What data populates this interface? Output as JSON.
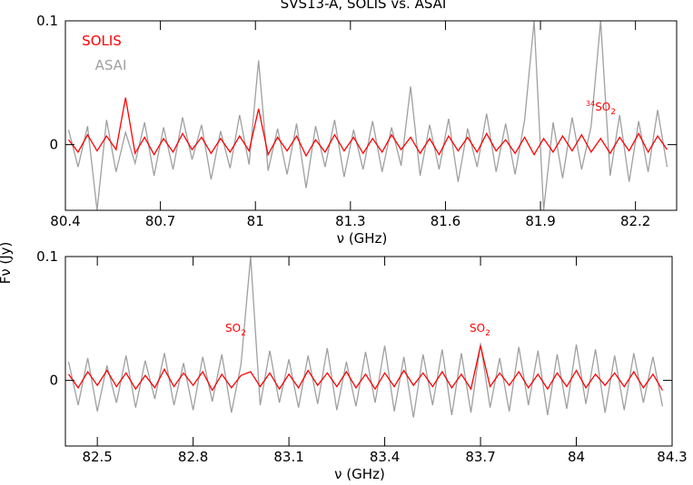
{
  "chart_data": [
    {
      "type": "line",
      "title": "SVS13-A, SOLIS vs. ASAI",
      "y_label": "Fν (Jy)",
      "x_label": "ν (GHz)",
      "x": [
        80.41,
        80.44,
        80.47,
        80.5,
        80.53,
        80.56,
        80.59,
        80.62,
        80.65,
        80.68,
        80.71,
        80.74,
        80.77,
        80.8,
        80.83,
        80.86,
        80.89,
        80.92,
        80.95,
        80.98,
        81.01,
        81.04,
        81.07,
        81.1,
        81.13,
        81.16,
        81.19,
        81.22,
        81.25,
        81.28,
        81.31,
        81.34,
        81.37,
        81.4,
        81.43,
        81.46,
        81.49,
        81.52,
        81.55,
        81.58,
        81.61,
        81.64,
        81.67,
        81.7,
        81.73,
        81.76,
        81.79,
        81.82,
        81.85,
        81.88,
        81.91,
        81.94,
        81.97,
        82.0,
        82.03,
        82.06,
        82.09,
        82.12,
        82.15,
        82.18,
        82.21,
        82.24,
        82.27,
        82.3
      ],
      "series": [
        {
          "name": "ASAI",
          "color": "#a0a0a0",
          "values": [
            0.012,
            -0.018,
            0.015,
            -0.053,
            0.02,
            -0.022,
            0.01,
            -0.015,
            0.018,
            -0.025,
            0.014,
            -0.02,
            0.022,
            -0.012,
            0.016,
            -0.028,
            0.011,
            -0.019,
            0.024,
            -0.016,
            0.068,
            -0.021,
            0.013,
            -0.024,
            0.017,
            -0.035,
            0.015,
            -0.018,
            0.02,
            -0.026,
            0.012,
            -0.02,
            0.019,
            -0.022,
            0.014,
            -0.017,
            0.047,
            -0.025,
            0.016,
            -0.02,
            0.021,
            -0.03,
            0.013,
            -0.018,
            0.025,
            -0.022,
            0.017,
            -0.024,
            0.02,
            0.1,
            -0.053,
            0.018,
            -0.027,
            0.022,
            -0.02,
            0.015,
            0.1,
            -0.025,
            0.024,
            -0.03,
            0.019,
            -0.022,
            0.028,
            -0.018
          ]
        },
        {
          "name": "SOLIS",
          "color": "#ff0000",
          "values": [
            0.004,
            -0.006,
            0.008,
            -0.005,
            0.007,
            -0.004,
            0.038,
            -0.007,
            0.006,
            -0.008,
            0.005,
            -0.006,
            0.009,
            -0.004,
            0.006,
            -0.007,
            0.005,
            -0.006,
            0.007,
            -0.005,
            0.029,
            -0.008,
            0.006,
            -0.005,
            0.007,
            -0.009,
            0.004,
            -0.006,
            0.008,
            -0.005,
            0.006,
            -0.007,
            0.005,
            -0.006,
            0.008,
            -0.004,
            0.006,
            -0.007,
            0.005,
            -0.008,
            0.007,
            -0.005,
            0.006,
            -0.006,
            0.009,
            -0.005,
            0.004,
            -0.007,
            0.006,
            -0.008,
            0.005,
            -0.006,
            0.007,
            -0.005,
            0.008,
            -0.006,
            0.005,
            -0.007,
            0.006,
            -0.005,
            0.009,
            -0.006,
            0.007,
            -0.004
          ]
        }
      ],
      "xlim": [
        80.4,
        82.33
      ],
      "ylim": [
        -0.053,
        0.1
      ],
      "xticks": [
        80.4,
        80.7,
        81,
        81.3,
        81.6,
        81.9,
        82.2
      ],
      "yticks": [
        0,
        0.1
      ],
      "annotations": [
        {
          "sup": "34",
          "text": "SO",
          "sub": "2",
          "color": "#ff0000"
        }
      ]
    },
    {
      "type": "line",
      "x_label": "ν (GHz)",
      "x": [
        82.41,
        82.44,
        82.47,
        82.5,
        82.53,
        82.56,
        82.59,
        82.62,
        82.65,
        82.68,
        82.71,
        82.74,
        82.77,
        82.8,
        82.83,
        82.86,
        82.89,
        82.92,
        82.95,
        82.98,
        83.01,
        83.04,
        83.07,
        83.1,
        83.13,
        83.16,
        83.19,
        83.22,
        83.25,
        83.28,
        83.31,
        83.34,
        83.37,
        83.4,
        83.43,
        83.46,
        83.49,
        83.52,
        83.55,
        83.58,
        83.61,
        83.64,
        83.67,
        83.7,
        83.73,
        83.76,
        83.79,
        83.82,
        83.85,
        83.88,
        83.91,
        83.94,
        83.97,
        84.0,
        84.03,
        84.06,
        84.09,
        84.12,
        84.15,
        84.18,
        84.21,
        84.24,
        84.27
      ],
      "series": [
        {
          "color": "#a0a0a0",
          "values": [
            0.015,
            -0.02,
            0.018,
            -0.025,
            0.012,
            -0.018,
            0.02,
            -0.022,
            0.016,
            -0.015,
            0.022,
            -0.02,
            0.014,
            -0.024,
            0.019,
            -0.017,
            0.021,
            -0.026,
            0.013,
            0.1,
            -0.02,
            0.024,
            -0.018,
            0.017,
            -0.022,
            0.02,
            -0.019,
            0.026,
            -0.024,
            0.015,
            -0.021,
            0.023,
            -0.018,
            0.028,
            -0.025,
            0.019,
            -0.03,
            0.021,
            -0.02,
            0.025,
            -0.028,
            0.022,
            -0.026,
            0.03,
            -0.022,
            0.018,
            -0.025,
            0.027,
            -0.02,
            0.024,
            -0.028,
            0.021,
            -0.023,
            0.029,
            -0.019,
            0.025,
            -0.026,
            0.02,
            -0.024,
            0.022,
            -0.018,
            0.019,
            -0.021
          ]
        },
        {
          "color": "#ff0000",
          "values": [
            0.005,
            -0.006,
            0.007,
            -0.004,
            0.008,
            -0.005,
            0.006,
            -0.007,
            0.004,
            -0.006,
            0.009,
            -0.005,
            0.006,
            -0.004,
            0.007,
            -0.008,
            0.005,
            -0.006,
            0.004,
            0.007,
            -0.005,
            0.006,
            -0.007,
            0.005,
            -0.006,
            0.008,
            -0.004,
            0.006,
            -0.005,
            0.007,
            -0.006,
            0.005,
            -0.007,
            0.006,
            -0.005,
            0.008,
            -0.004,
            0.006,
            -0.005,
            0.007,
            -0.006,
            0.005,
            -0.007,
            0.028,
            -0.005,
            0.006,
            -0.004,
            0.007,
            -0.006,
            0.005,
            -0.007,
            0.006,
            -0.005,
            0.008,
            -0.006,
            0.005,
            -0.004,
            0.006,
            -0.005,
            0.007,
            -0.006,
            0.005,
            -0.008
          ]
        }
      ],
      "xlim": [
        82.4,
        84.3
      ],
      "ylim": [
        -0.053,
        0.1
      ],
      "xticks": [
        82.5,
        82.8,
        83.1,
        83.4,
        83.7,
        84,
        84.3
      ],
      "yticks": [
        0,
        0.1
      ],
      "annotations": [
        {
          "text": "SO",
          "sub": "2",
          "color": "#ff0000"
        },
        {
          "text": "SO",
          "sub": "2",
          "color": "#ff0000"
        }
      ]
    }
  ]
}
